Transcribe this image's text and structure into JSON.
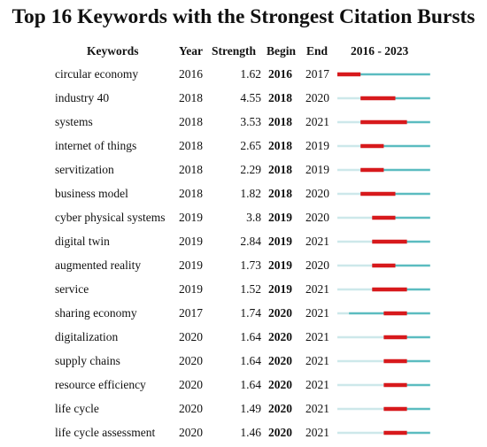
{
  "title": "Top 16 Keywords with the Strongest Citation Bursts",
  "headers": {
    "keywords": "Keywords",
    "year": "Year",
    "strength": "Strength",
    "begin": "Begin",
    "end": "End",
    "range": "2016 - 2023"
  },
  "timeline": {
    "start": 2016,
    "end": 2023
  },
  "colors": {
    "burst": "#d7191c",
    "active": "#5bbcc0",
    "inactive": "#cde8ea"
  },
  "rows": [
    {
      "keyword": "circular economy",
      "year": "2016",
      "strength": "1.62",
      "begin": "2016",
      "end": "2017"
    },
    {
      "keyword": "industry 40",
      "year": "2018",
      "strength": "4.55",
      "begin": "2018",
      "end": "2020"
    },
    {
      "keyword": "systems",
      "year": "2018",
      "strength": "3.53",
      "begin": "2018",
      "end": "2021"
    },
    {
      "keyword": "internet of things",
      "year": "2018",
      "strength": "2.65",
      "begin": "2018",
      "end": "2019"
    },
    {
      "keyword": "servitization",
      "year": "2018",
      "strength": "2.29",
      "begin": "2018",
      "end": "2019"
    },
    {
      "keyword": "business model",
      "year": "2018",
      "strength": "1.82",
      "begin": "2018",
      "end": "2020"
    },
    {
      "keyword": "cyber physical systems",
      "year": "2019",
      "strength": "3.8",
      "begin": "2019",
      "end": "2020"
    },
    {
      "keyword": "digital twin",
      "year": "2019",
      "strength": "2.84",
      "begin": "2019",
      "end": "2021"
    },
    {
      "keyword": "augmented reality",
      "year": "2019",
      "strength": "1.73",
      "begin": "2019",
      "end": "2020"
    },
    {
      "keyword": "service",
      "year": "2019",
      "strength": "1.52",
      "begin": "2019",
      "end": "2021"
    },
    {
      "keyword": "sharing economy",
      "year": "2017",
      "strength": "1.74",
      "begin": "2020",
      "end": "2021"
    },
    {
      "keyword": "digitalization",
      "year": "2020",
      "strength": "1.64",
      "begin": "2020",
      "end": "2021"
    },
    {
      "keyword": "supply chains",
      "year": "2020",
      "strength": "1.64",
      "begin": "2020",
      "end": "2021"
    },
    {
      "keyword": "resource efficiency",
      "year": "2020",
      "strength": "1.64",
      "begin": "2020",
      "end": "2021"
    },
    {
      "keyword": "life cycle",
      "year": "2020",
      "strength": "1.49",
      "begin": "2020",
      "end": "2021"
    },
    {
      "keyword": "life cycle assessment",
      "year": "2020",
      "strength": "1.46",
      "begin": "2020",
      "end": "2021"
    }
  ]
}
